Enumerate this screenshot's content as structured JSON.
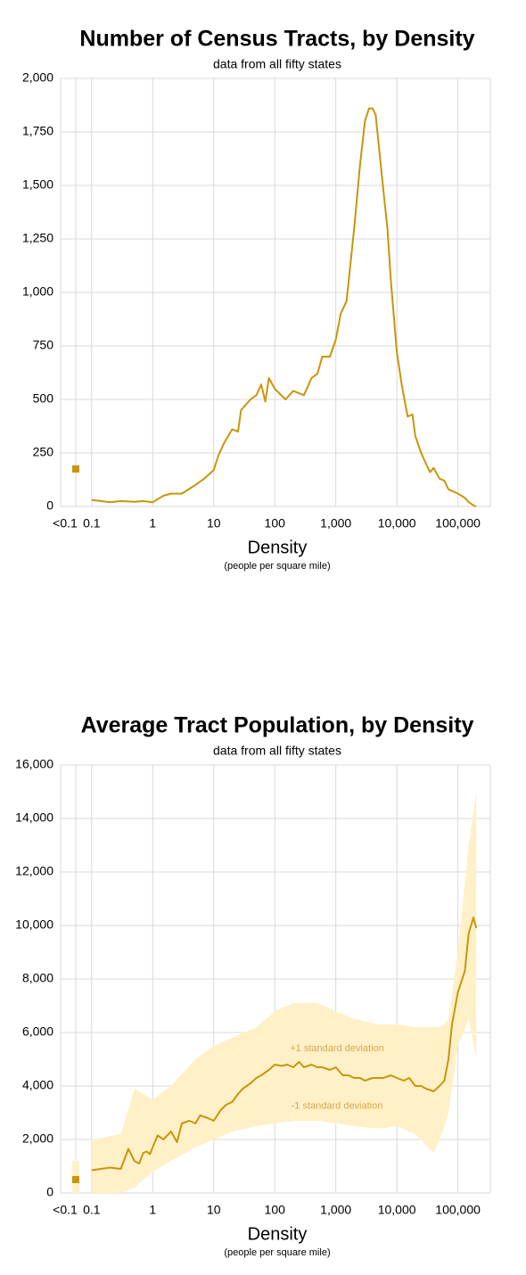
{
  "chart_data": [
    {
      "type": "line",
      "title": "Number of Census Tracts, by Density",
      "subtitle": "data from all fifty states",
      "x_label": "Density",
      "x_sublabel": "(people per square mile)",
      "color": "#c8960a",
      "log_x": true,
      "grid": true,
      "low_density": {
        "label": "<0.1",
        "value": 175
      },
      "x": [
        0.1,
        0.2,
        0.3,
        0.5,
        0.7,
        1,
        1.5,
        2,
        3,
        5,
        7,
        10,
        12,
        15,
        20,
        25,
        28,
        40,
        50,
        60,
        70,
        80,
        100,
        150,
        200,
        300,
        400,
        500,
        600,
        800,
        1000,
        1200,
        1500,
        2000,
        2500,
        3000,
        3500,
        4000,
        4500,
        5000,
        6000,
        7000,
        8000,
        10000,
        12000,
        15000,
        18000,
        20000,
        25000,
        30000,
        35000,
        40000,
        50000,
        60000,
        70000,
        100000,
        130000,
        150000,
        180000,
        200000
      ],
      "values": [
        30,
        20,
        25,
        22,
        25,
        20,
        50,
        60,
        60,
        100,
        130,
        170,
        240,
        300,
        360,
        350,
        450,
        500,
        520,
        570,
        490,
        600,
        550,
        500,
        540,
        520,
        600,
        620,
        700,
        700,
        780,
        900,
        960,
        1300,
        1600,
        1800,
        1860,
        1860,
        1830,
        1700,
        1480,
        1300,
        1050,
        720,
        570,
        420,
        430,
        330,
        250,
        200,
        160,
        180,
        130,
        120,
        80,
        60,
        40,
        20,
        5,
        0
      ],
      "xlim": [
        0.031,
        340000
      ],
      "xticks": [
        0.1,
        1,
        10,
        100,
        {
          "value": 1000,
          "label": "1,000"
        },
        {
          "value": 10000,
          "label": "10,000"
        },
        {
          "value": 100000,
          "label": "100,000"
        }
      ],
      "ylim": [
        0,
        2000
      ],
      "yticks": [
        0,
        250,
        500,
        750,
        {
          "value": 1000,
          "label": "1,000"
        },
        {
          "value": 1250,
          "label": "1,250"
        },
        {
          "value": 1500,
          "label": "1,500"
        },
        {
          "value": 1750,
          "label": "1,750"
        },
        {
          "value": 2000,
          "label": "2,000"
        }
      ]
    },
    {
      "type": "line",
      "title": "Average Tract Population, by Density",
      "subtitle": "data from all fifty states",
      "x_label": "Density",
      "x_sublabel": "(people per square mile)",
      "color": "#c8960a",
      "band_color": "#fff0c8",
      "log_x": true,
      "grid": true,
      "annotations": [
        "+1 standard deviation",
        "-1 standard deviation"
      ],
      "low_density": {
        "label": "<0.1",
        "value": 500,
        "upper": 1200,
        "lower": 0
      },
      "x": [
        0.1,
        0.2,
        0.3,
        0.4,
        0.5,
        0.6,
        0.7,
        0.8,
        0.9,
        1.2,
        1.5,
        2,
        2.5,
        3,
        4,
        5,
        6,
        8,
        10,
        13,
        16,
        20,
        25,
        30,
        40,
        50,
        60,
        80,
        100,
        130,
        160,
        200,
        250,
        300,
        400,
        500,
        600,
        800,
        1000,
        1300,
        1600,
        2000,
        2500,
        3000,
        4000,
        5000,
        6000,
        8000,
        10000,
        13000,
        16000,
        20000,
        25000,
        30000,
        40000,
        50000,
        60000,
        70000,
        80000,
        100000,
        130000,
        150000,
        180000,
        200000
      ],
      "values": [
        850,
        950,
        900,
        1650,
        1200,
        1100,
        1500,
        1550,
        1450,
        2150,
        2000,
        2300,
        1900,
        2600,
        2700,
        2600,
        2900,
        2800,
        2700,
        3100,
        3300,
        3400,
        3700,
        3900,
        4100,
        4300,
        4400,
        4600,
        4800,
        4750,
        4800,
        4700,
        4900,
        4700,
        4800,
        4700,
        4700,
        4600,
        4700,
        4400,
        4400,
        4300,
        4300,
        4200,
        4300,
        4300,
        4300,
        4400,
        4300,
        4200,
        4300,
        4000,
        4000,
        3900,
        3800,
        4000,
        4200,
        5000,
        6300,
        7500,
        8300,
        9700,
        10300,
        9900
      ],
      "band": {
        "x": [
          0.1,
          0.3,
          0.5,
          1,
          2,
          5,
          10,
          20,
          50,
          100,
          200,
          500,
          1000,
          2000,
          5000,
          10000,
          20000,
          40000,
          50000,
          60000,
          70000,
          100000,
          150000,
          200000
        ],
        "upper": [
          2000,
          2200,
          3900,
          3500,
          4000,
          5000,
          5500,
          5800,
          6200,
          6800,
          7100,
          7100,
          6800,
          6500,
          6300,
          6300,
          6200,
          6200,
          6200,
          6300,
          6500,
          9000,
          13000,
          15000
        ],
        "lower": [
          0,
          0,
          200,
          800,
          1200,
          1700,
          2000,
          2300,
          2500,
          2600,
          2700,
          2700,
          2600,
          2500,
          2400,
          2500,
          2200,
          1500,
          2000,
          2500,
          3000,
          5500,
          6500,
          5000
        ]
      },
      "xlim": [
        0.031,
        340000
      ],
      "xticks": [
        0.1,
        1,
        10,
        100,
        {
          "value": 1000,
          "label": "1,000"
        },
        {
          "value": 10000,
          "label": "10,000"
        },
        {
          "value": 100000,
          "label": "100,000"
        }
      ],
      "ylim": [
        0,
        16000
      ],
      "yticks": [
        0,
        {
          "value": 2000,
          "label": "2,000"
        },
        {
          "value": 4000,
          "label": "4,000"
        },
        {
          "value": 6000,
          "label": "6,000"
        },
        {
          "value": 8000,
          "label": "8,000"
        },
        {
          "value": 10000,
          "label": "10,000"
        },
        {
          "value": 12000,
          "label": "12,000"
        },
        {
          "value": 14000,
          "label": "14,000"
        },
        {
          "value": 16000,
          "label": "16,000"
        }
      ]
    }
  ]
}
